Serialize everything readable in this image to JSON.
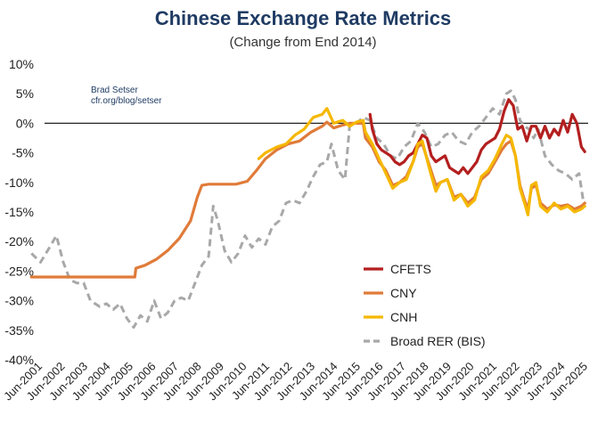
{
  "chart_data": {
    "type": "line",
    "title": "Chinese Exchange Rate Metrics",
    "subtitle": "(Change from End 2014)",
    "credit": [
      "Brad Setser",
      "cfr.org/blog/setser"
    ],
    "xlabel": "",
    "ylabel": "",
    "ylim": [
      -40,
      10
    ],
    "y_ticks": [
      10,
      5,
      0,
      -5,
      -10,
      -15,
      -20,
      -25,
      -30,
      -35,
      -40
    ],
    "y_tick_labels": [
      "10%",
      "5%",
      "0%",
      "-5%",
      "-10%",
      "-15%",
      "-20%",
      "-25%",
      "-30%",
      "-35%",
      "-40%"
    ],
    "xlim": [
      2001.5,
      2025.5
    ],
    "x_ticks": [
      2001.5,
      2002.5,
      2003.5,
      2004.5,
      2005.5,
      2006.5,
      2007.5,
      2008.5,
      2009.5,
      2010.5,
      2011.5,
      2012.5,
      2013.5,
      2014.5,
      2015.5,
      2016.5,
      2017.5,
      2018.5,
      2019.5,
      2020.5,
      2021.5,
      2022.5,
      2023.5,
      2024.5,
      2025.5
    ],
    "x_tick_labels": [
      "Jun-2001",
      "Jun-2002",
      "Jun-2003",
      "Jun-2004",
      "Jun-2005",
      "Jun-2006",
      "Jun-2007",
      "Jun-2008",
      "Jun-2009",
      "Jun-2010",
      "Jun-2011",
      "Jun-2012",
      "Jun-2013",
      "Jun-2014",
      "Jun-2015",
      "Jun-2016",
      "Jun-2017",
      "Jun-2018",
      "Jun-2019",
      "Jun-2020",
      "Jun-2021",
      "Jun-2022",
      "Jun-2023",
      "Jun-2024",
      "Jun-2025"
    ],
    "zero_line": true,
    "grid": false,
    "legend_position": "lower-right",
    "series": [
      {
        "name": "CFETS",
        "color": "#b41f1f",
        "dash": "solid",
        "points": [
          [
            2015.9,
            1.5
          ],
          [
            2016.0,
            -1.0
          ],
          [
            2016.2,
            -3.5
          ],
          [
            2016.4,
            -4.5
          ],
          [
            2016.6,
            -5.0
          ],
          [
            2016.8,
            -5.5
          ],
          [
            2017.0,
            -6.5
          ],
          [
            2017.2,
            -7.0
          ],
          [
            2017.4,
            -6.5
          ],
          [
            2017.6,
            -5.5
          ],
          [
            2017.8,
            -5.0
          ],
          [
            2018.0,
            -3.5
          ],
          [
            2018.2,
            -2.0
          ],
          [
            2018.4,
            -2.5
          ],
          [
            2018.6,
            -5.5
          ],
          [
            2018.8,
            -6.5
          ],
          [
            2019.0,
            -6.0
          ],
          [
            2019.2,
            -5.5
          ],
          [
            2019.4,
            -7.5
          ],
          [
            2019.6,
            -8.0
          ],
          [
            2019.8,
            -8.5
          ],
          [
            2020.0,
            -7.5
          ],
          [
            2020.2,
            -8.5
          ],
          [
            2020.4,
            -7.5
          ],
          [
            2020.6,
            -6.5
          ],
          [
            2020.8,
            -4.5
          ],
          [
            2021.0,
            -3.5
          ],
          [
            2021.2,
            -3.0
          ],
          [
            2021.4,
            -2.5
          ],
          [
            2021.6,
            -1.0
          ],
          [
            2021.8,
            2.0
          ],
          [
            2022.0,
            4.0
          ],
          [
            2022.2,
            3.0
          ],
          [
            2022.4,
            -1.0
          ],
          [
            2022.6,
            -0.5
          ],
          [
            2022.8,
            -3.0
          ],
          [
            2023.0,
            -0.5
          ],
          [
            2023.2,
            -0.5
          ],
          [
            2023.4,
            -2.5
          ],
          [
            2023.6,
            -0.5
          ],
          [
            2023.8,
            -2.5
          ],
          [
            2024.0,
            -1.0
          ],
          [
            2024.2,
            -2.0
          ],
          [
            2024.4,
            0.5
          ],
          [
            2024.6,
            -1.5
          ],
          [
            2024.8,
            1.5
          ],
          [
            2025.0,
            0.0
          ],
          [
            2025.2,
            -4.0
          ],
          [
            2025.35,
            -4.8
          ]
        ]
      },
      {
        "name": "CNY",
        "color": "#e07b39",
        "dash": "solid",
        "points": [
          [
            2001.0,
            -26.0
          ],
          [
            2002.0,
            -26.0
          ],
          [
            2003.0,
            -26.0
          ],
          [
            2004.0,
            -26.0
          ],
          [
            2005.0,
            -26.0
          ],
          [
            2005.55,
            -26.0
          ],
          [
            2005.6,
            -24.5
          ],
          [
            2006.0,
            -24.0
          ],
          [
            2006.5,
            -23.0
          ],
          [
            2007.0,
            -21.5
          ],
          [
            2007.5,
            -19.5
          ],
          [
            2008.0,
            -16.5
          ],
          [
            2008.3,
            -12.5
          ],
          [
            2008.5,
            -10.5
          ],
          [
            2008.8,
            -10.3
          ],
          [
            2009.5,
            -10.3
          ],
          [
            2010.0,
            -10.3
          ],
          [
            2010.5,
            -9.8
          ],
          [
            2010.9,
            -8.0
          ],
          [
            2011.3,
            -6.0
          ],
          [
            2011.8,
            -4.5
          ],
          [
            2012.3,
            -3.5
          ],
          [
            2012.8,
            -3.0
          ],
          [
            2013.3,
            -1.5
          ],
          [
            2013.8,
            -0.5
          ],
          [
            2014.0,
            0.2
          ],
          [
            2014.3,
            -0.8
          ],
          [
            2014.7,
            -0.3
          ],
          [
            2015.0,
            0.0
          ],
          [
            2015.6,
            0.0
          ],
          [
            2015.7,
            -2.5
          ],
          [
            2016.0,
            -4.0
          ],
          [
            2016.3,
            -6.5
          ],
          [
            2016.6,
            -8.0
          ],
          [
            2016.9,
            -10.5
          ],
          [
            2017.2,
            -10.0
          ],
          [
            2017.5,
            -9.0
          ],
          [
            2017.8,
            -6.5
          ],
          [
            2018.0,
            -4.0
          ],
          [
            2018.2,
            -3.5
          ],
          [
            2018.5,
            -7.0
          ],
          [
            2018.8,
            -10.5
          ],
          [
            2019.0,
            -10.0
          ],
          [
            2019.3,
            -9.5
          ],
          [
            2019.6,
            -12.5
          ],
          [
            2019.9,
            -12.0
          ],
          [
            2020.2,
            -13.5
          ],
          [
            2020.5,
            -12.5
          ],
          [
            2020.8,
            -9.5
          ],
          [
            2021.1,
            -8.5
          ],
          [
            2021.4,
            -6.5
          ],
          [
            2021.7,
            -4.5
          ],
          [
            2021.9,
            -3.5
          ],
          [
            2022.1,
            -3.0
          ],
          [
            2022.3,
            -5.5
          ],
          [
            2022.5,
            -10.5
          ],
          [
            2022.7,
            -13.0
          ],
          [
            2022.85,
            -14.5
          ],
          [
            2023.0,
            -11.0
          ],
          [
            2023.2,
            -10.5
          ],
          [
            2023.4,
            -13.5
          ],
          [
            2023.7,
            -14.5
          ],
          [
            2024.0,
            -13.8
          ],
          [
            2024.3,
            -14.0
          ],
          [
            2024.6,
            -13.8
          ],
          [
            2024.9,
            -14.5
          ],
          [
            2025.2,
            -14.0
          ],
          [
            2025.35,
            -13.5
          ]
        ]
      },
      {
        "name": "CNH",
        "color": "#f5b800",
        "dash": "solid",
        "points": [
          [
            2011.0,
            -6.0
          ],
          [
            2011.3,
            -5.0
          ],
          [
            2011.8,
            -4.0
          ],
          [
            2012.2,
            -3.5
          ],
          [
            2012.6,
            -2.0
          ],
          [
            2013.0,
            -1.0
          ],
          [
            2013.4,
            1.0
          ],
          [
            2013.8,
            1.5
          ],
          [
            2014.0,
            2.5
          ],
          [
            2014.3,
            0.0
          ],
          [
            2014.7,
            0.5
          ],
          [
            2015.0,
            -0.5
          ],
          [
            2015.3,
            0.2
          ],
          [
            2015.6,
            0.5
          ],
          [
            2015.7,
            -1.5
          ],
          [
            2016.0,
            -3.5
          ],
          [
            2016.3,
            -6.0
          ],
          [
            2016.6,
            -8.5
          ],
          [
            2016.9,
            -11.0
          ],
          [
            2017.2,
            -10.0
          ],
          [
            2017.5,
            -9.5
          ],
          [
            2017.8,
            -6.5
          ],
          [
            2018.0,
            -3.5
          ],
          [
            2018.2,
            -3.0
          ],
          [
            2018.5,
            -7.5
          ],
          [
            2018.8,
            -11.5
          ],
          [
            2019.0,
            -10.0
          ],
          [
            2019.3,
            -9.5
          ],
          [
            2019.6,
            -13.0
          ],
          [
            2019.9,
            -12.0
          ],
          [
            2020.2,
            -14.0
          ],
          [
            2020.5,
            -13.0
          ],
          [
            2020.8,
            -9.0
          ],
          [
            2021.1,
            -8.0
          ],
          [
            2021.4,
            -6.0
          ],
          [
            2021.7,
            -3.5
          ],
          [
            2021.9,
            -2.0
          ],
          [
            2022.1,
            -2.5
          ],
          [
            2022.3,
            -5.5
          ],
          [
            2022.5,
            -11.0
          ],
          [
            2022.7,
            -13.5
          ],
          [
            2022.85,
            -15.5
          ],
          [
            2023.0,
            -10.5
          ],
          [
            2023.2,
            -10.0
          ],
          [
            2023.4,
            -14.0
          ],
          [
            2023.7,
            -15.0
          ],
          [
            2024.0,
            -13.5
          ],
          [
            2024.3,
            -14.5
          ],
          [
            2024.6,
            -14.0
          ],
          [
            2024.9,
            -15.0
          ],
          [
            2025.2,
            -14.5
          ],
          [
            2025.35,
            -14.0
          ]
        ]
      },
      {
        "name": "Broad RER (BIS)",
        "color": "#a8a8a8",
        "dash": "dashed",
        "points": [
          [
            2001.0,
            -22.0
          ],
          [
            2001.4,
            -23.5
          ],
          [
            2001.8,
            -21.0
          ],
          [
            2002.1,
            -19.0
          ],
          [
            2002.4,
            -23.5
          ],
          [
            2002.7,
            -26.5
          ],
          [
            2003.0,
            -27.0
          ],
          [
            2003.3,
            -27.0
          ],
          [
            2003.6,
            -30.0
          ],
          [
            2004.0,
            -31.0
          ],
          [
            2004.3,
            -30.5
          ],
          [
            2004.6,
            -31.5
          ],
          [
            2004.9,
            -30.5
          ],
          [
            2005.2,
            -33.0
          ],
          [
            2005.5,
            -34.5
          ],
          [
            2005.8,
            -32.5
          ],
          [
            2006.1,
            -33.5
          ],
          [
            2006.4,
            -30.0
          ],
          [
            2006.7,
            -33.0
          ],
          [
            2007.0,
            -32.0
          ],
          [
            2007.3,
            -30.0
          ],
          [
            2007.6,
            -29.5
          ],
          [
            2007.9,
            -30.0
          ],
          [
            2008.2,
            -27.0
          ],
          [
            2008.5,
            -24.0
          ],
          [
            2008.8,
            -22.5
          ],
          [
            2009.0,
            -14.0
          ],
          [
            2009.2,
            -16.5
          ],
          [
            2009.5,
            -21.5
          ],
          [
            2009.8,
            -23.5
          ],
          [
            2010.1,
            -22.0
          ],
          [
            2010.4,
            -19.0
          ],
          [
            2010.7,
            -21.0
          ],
          [
            2011.0,
            -19.5
          ],
          [
            2011.3,
            -20.5
          ],
          [
            2011.6,
            -17.5
          ],
          [
            2011.9,
            -16.5
          ],
          [
            2012.2,
            -13.5
          ],
          [
            2012.5,
            -13.0
          ],
          [
            2012.8,
            -13.5
          ],
          [
            2013.1,
            -11.5
          ],
          [
            2013.4,
            -9.0
          ],
          [
            2013.7,
            -7.0
          ],
          [
            2014.0,
            -6.5
          ],
          [
            2014.2,
            -3.5
          ],
          [
            2014.5,
            -8.0
          ],
          [
            2014.8,
            -9.5
          ],
          [
            2015.0,
            -0.5
          ],
          [
            2015.3,
            0.0
          ],
          [
            2015.6,
            1.0
          ],
          [
            2015.9,
            0.5
          ],
          [
            2016.2,
            -2.5
          ],
          [
            2016.5,
            -3.5
          ],
          [
            2016.8,
            -5.5
          ],
          [
            2017.1,
            -6.0
          ],
          [
            2017.4,
            -4.0
          ],
          [
            2017.7,
            -3.0
          ],
          [
            2018.0,
            0.0
          ],
          [
            2018.3,
            -1.5
          ],
          [
            2018.6,
            -4.0
          ],
          [
            2018.9,
            -3.5
          ],
          [
            2019.2,
            -2.0
          ],
          [
            2019.5,
            -1.5
          ],
          [
            2019.8,
            -3.0
          ],
          [
            2020.1,
            -3.5
          ],
          [
            2020.4,
            -1.5
          ],
          [
            2020.7,
            -0.5
          ],
          [
            2021.0,
            1.0
          ],
          [
            2021.3,
            2.5
          ],
          [
            2021.6,
            1.5
          ],
          [
            2021.9,
            5.0
          ],
          [
            2022.1,
            5.5
          ],
          [
            2022.3,
            4.0
          ],
          [
            2022.5,
            0.5
          ],
          [
            2022.7,
            -0.5
          ],
          [
            2022.9,
            -1.0
          ],
          [
            2023.1,
            -2.5
          ],
          [
            2023.3,
            -1.0
          ],
          [
            2023.6,
            -5.5
          ],
          [
            2023.9,
            -7.0
          ],
          [
            2024.2,
            -8.0
          ],
          [
            2024.5,
            -8.5
          ],
          [
            2024.8,
            -9.5
          ],
          [
            2025.1,
            -8.5
          ],
          [
            2025.3,
            -13.5
          ]
        ]
      }
    ]
  }
}
